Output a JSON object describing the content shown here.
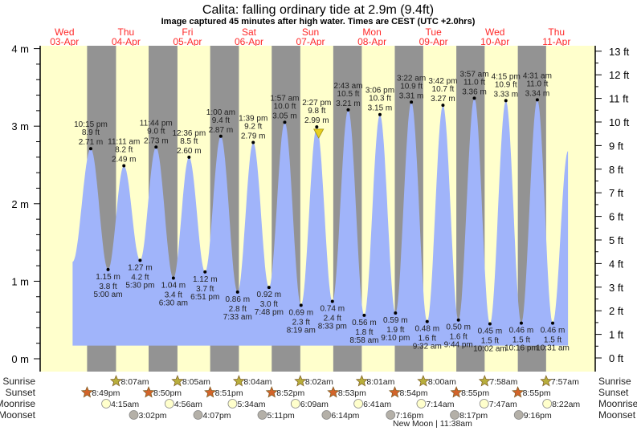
{
  "header": {
    "title": "Calita: falling  ordinary tide at 2.9m (9.4ft)",
    "subtitle": "Image captured 45 minutes after high water. Times are CEST (UTC +2.0hrs)"
  },
  "chart_data": {
    "type": "area",
    "title": "Calita: falling  ordinary tide at 2.9m (9.4ft)",
    "ylabel_left": "m",
    "ylabel_right": "ft",
    "ylim_m": [
      0,
      4
    ],
    "ylim_ft": [
      0,
      13
    ],
    "grid": false,
    "colors": {
      "day": "#ffffcc",
      "night": "#939393",
      "water": "#a0b4fa",
      "date": "#ff2a2a",
      "current": "#e8d020",
      "sunrise": "#b8ae3c",
      "sunset": "#d2642a",
      "moonrise": "#ffffcc",
      "moonset": "#b4b0a8"
    },
    "days": [
      {
        "name": "Wed",
        "date": "03-Apr"
      },
      {
        "name": "Thu",
        "date": "04-Apr"
      },
      {
        "name": "Fri",
        "date": "05-Apr"
      },
      {
        "name": "Sat",
        "date": "06-Apr"
      },
      {
        "name": "Sun",
        "date": "07-Apr"
      },
      {
        "name": "Mon",
        "date": "08-Apr"
      },
      {
        "name": "Tue",
        "date": "09-Apr"
      },
      {
        "name": "Wed",
        "date": "10-Apr"
      },
      {
        "name": "Thu",
        "date": "11-Apr"
      }
    ],
    "y_ticks_m": [
      "0 m",
      "1 m",
      "2 m",
      "3 m",
      "4 m"
    ],
    "y_ticks_ft": [
      "0 ft",
      "1 ft",
      "2 ft",
      "3 ft",
      "4 ft",
      "5 ft",
      "6 ft",
      "7 ft",
      "8 ft",
      "9 ft",
      "10 ft",
      "11 ft",
      "12 ft",
      "13 ft"
    ],
    "series_start": {
      "day": 0,
      "time": "3:10 pm",
      "m": 1.25
    },
    "series_end": {
      "day": 8,
      "time": "4:30 pm",
      "m": 2.68
    },
    "fill_base_m": 0.17,
    "extremes": [
      {
        "type": "high",
        "day": 0,
        "time": "10:15 pm",
        "ft": "8.9 ft",
        "m": "2.71 m",
        "value": 2.71
      },
      {
        "type": "low",
        "day": 1,
        "time": "5:00 am",
        "ft": "3.8 ft",
        "m": "1.15 m",
        "value": 1.15
      },
      {
        "type": "high",
        "day": 1,
        "time": "11:11 am",
        "ft": "8.2 ft",
        "m": "2.49 m",
        "value": 2.49
      },
      {
        "type": "low",
        "day": 1,
        "time": "5:30 pm",
        "ft": "4.2 ft",
        "m": "1.27 m",
        "value": 1.27
      },
      {
        "type": "high",
        "day": 1,
        "time": "11:44 pm",
        "ft": "9.0 ft",
        "m": "2.73 m",
        "value": 2.73
      },
      {
        "type": "low",
        "day": 2,
        "time": "6:30 am",
        "ft": "3.4 ft",
        "m": "1.04 m",
        "value": 1.04
      },
      {
        "type": "high",
        "day": 2,
        "time": "12:36 pm",
        "ft": "8.5 ft",
        "m": "2.60 m",
        "value": 2.6
      },
      {
        "type": "low",
        "day": 2,
        "time": "6:51 pm",
        "ft": "3.7 ft",
        "m": "1.12 m",
        "value": 1.12
      },
      {
        "type": "high",
        "day": 3,
        "time": "1:00 am",
        "ft": "9.4 ft",
        "m": "2.87 m",
        "value": 2.87
      },
      {
        "type": "low",
        "day": 3,
        "time": "7:33 am",
        "ft": "2.8 ft",
        "m": "0.86 m",
        "value": 0.86
      },
      {
        "type": "high",
        "day": 3,
        "time": "1:39 pm",
        "ft": "9.2 ft",
        "m": "2.79 m",
        "value": 2.79
      },
      {
        "type": "low",
        "day": 3,
        "time": "7:48 pm",
        "ft": "3.0 ft",
        "m": "0.92 m",
        "value": 0.92
      },
      {
        "type": "high",
        "day": 4,
        "time": "1:57 am",
        "ft": "10.0 ft",
        "m": "3.05 m",
        "value": 3.05
      },
      {
        "type": "low",
        "day": 4,
        "time": "8:19 am",
        "ft": "2.3 ft",
        "m": "0.69 m",
        "value": 0.69
      },
      {
        "type": "high",
        "day": 4,
        "time": "2:27 pm",
        "ft": "9.8 ft",
        "m": "2.99 m",
        "value": 2.99
      },
      {
        "type": "low",
        "day": 4,
        "time": "8:33 pm",
        "ft": "2.4 ft",
        "m": "0.74 m",
        "value": 0.74
      },
      {
        "type": "high",
        "day": 5,
        "time": "2:43 am",
        "ft": "10.5 ft",
        "m": "3.21 m",
        "value": 3.21
      },
      {
        "type": "low",
        "day": 5,
        "time": "8:58 am",
        "ft": "1.8 ft",
        "m": "0.56 m",
        "value": 0.56
      },
      {
        "type": "high",
        "day": 5,
        "time": "3:06 pm",
        "ft": "10.3 ft",
        "m": "3.15 m",
        "value": 3.15
      },
      {
        "type": "low",
        "day": 5,
        "time": "9:10 pm",
        "ft": "1.9 ft",
        "m": "0.59 m",
        "value": 0.59
      },
      {
        "type": "high",
        "day": 6,
        "time": "3:22 am",
        "ft": "10.9 ft",
        "m": "3.31 m",
        "value": 3.31
      },
      {
        "type": "low",
        "day": 6,
        "time": "9:32 am",
        "ft": "1.6 ft",
        "m": "0.48 m",
        "value": 0.48
      },
      {
        "type": "high",
        "day": 6,
        "time": "3:42 pm",
        "ft": "10.7 ft",
        "m": "3.27 m",
        "value": 3.27
      },
      {
        "type": "low",
        "day": 6,
        "time": "9:44 pm",
        "ft": "1.6 ft",
        "m": "0.50 m",
        "value": 0.5
      },
      {
        "type": "high",
        "day": 7,
        "time": "3:57 am",
        "ft": "11.0 ft",
        "m": "3.36 m",
        "value": 3.36
      },
      {
        "type": "low",
        "day": 7,
        "time": "10:02 am",
        "ft": "1.5 ft",
        "m": "0.45 m",
        "value": 0.45
      },
      {
        "type": "high",
        "day": 7,
        "time": "4:15 pm",
        "ft": "10.9 ft",
        "m": "3.33 m",
        "value": 3.33
      },
      {
        "type": "low",
        "day": 7,
        "time": "10:16 pm",
        "ft": "1.5 ft",
        "m": "0.46 m",
        "value": 0.46
      },
      {
        "type": "high",
        "day": 8,
        "time": "4:31 am",
        "ft": "11.0 ft",
        "m": "3.34 m",
        "value": 3.34
      },
      {
        "type": "low",
        "day": 8,
        "time": "10:31 am",
        "ft": "1.5 ft",
        "m": "0.46 m",
        "value": 0.46
      }
    ],
    "current": {
      "day": 4,
      "time": "3:12 pm",
      "m": 2.9
    },
    "rows": {
      "sunrise": {
        "label": "Sunrise",
        "events": [
          {
            "day": 1,
            "time": "8:07am"
          },
          {
            "day": 2,
            "time": "8:05am"
          },
          {
            "day": 3,
            "time": "8:04am"
          },
          {
            "day": 4,
            "time": "8:02am"
          },
          {
            "day": 5,
            "time": "8:01am"
          },
          {
            "day": 6,
            "time": "8:00am"
          },
          {
            "day": 7,
            "time": "7:58am"
          },
          {
            "day": 8,
            "time": "7:57am"
          }
        ]
      },
      "sunset": {
        "label": "Sunset",
        "events": [
          {
            "day": 0,
            "time": "8:49pm"
          },
          {
            "day": 1,
            "time": "8:50pm"
          },
          {
            "day": 2,
            "time": "8:51pm"
          },
          {
            "day": 3,
            "time": "8:52pm"
          },
          {
            "day": 4,
            "time": "8:53pm"
          },
          {
            "day": 5,
            "time": "8:54pm"
          },
          {
            "day": 6,
            "time": "8:55pm"
          },
          {
            "day": 7,
            "time": "8:55pm"
          }
        ]
      },
      "moonrise": {
        "label": "Moonrise",
        "events": [
          {
            "day": 1,
            "time": "4:15am"
          },
          {
            "day": 2,
            "time": "4:56am"
          },
          {
            "day": 3,
            "time": "5:34am"
          },
          {
            "day": 4,
            "time": "6:09am"
          },
          {
            "day": 5,
            "time": "6:41am"
          },
          {
            "day": 6,
            "time": "7:14am"
          },
          {
            "day": 7,
            "time": "7:47am"
          },
          {
            "day": 8,
            "time": "8:22am"
          }
        ]
      },
      "moonset": {
        "label": "Moonset",
        "events": [
          {
            "day": 1,
            "time": "3:02pm"
          },
          {
            "day": 2,
            "time": "4:07pm"
          },
          {
            "day": 3,
            "time": "5:11pm"
          },
          {
            "day": 4,
            "time": "6:14pm"
          },
          {
            "day": 5,
            "time": "7:16pm"
          },
          {
            "day": 6,
            "time": "8:17pm"
          },
          {
            "day": 7,
            "time": "9:16pm"
          }
        ]
      }
    },
    "moon_phase": {
      "label": "New Moon | 11:38am",
      "day": 6,
      "time": "11:38am"
    }
  }
}
